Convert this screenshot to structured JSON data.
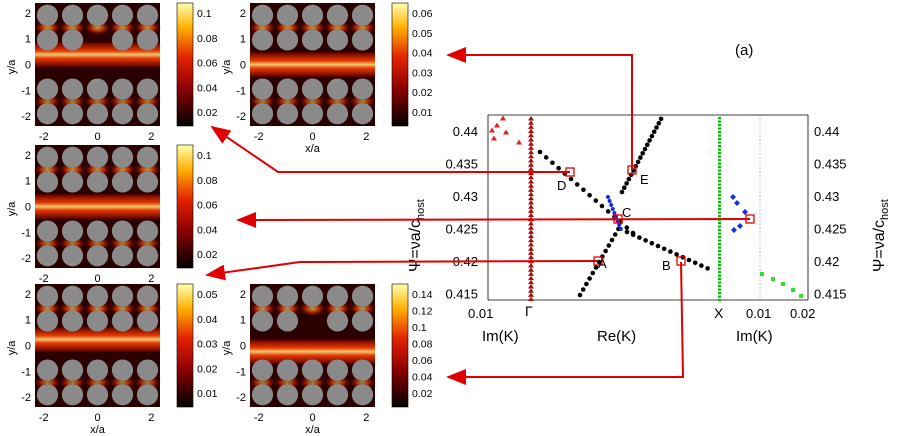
{
  "panel_label": "(a)",
  "axes": {
    "left_ylabel": "Ψ=νa/c",
    "left_ylabel_sub": "host",
    "right_ylabel": "Ψ=νa/c",
    "right_ylabel_sub": "host",
    "y_ticks": [
      "0.44",
      "0.435",
      "0.43",
      "0.425",
      "0.42",
      "0.415"
    ],
    "x_labels": {
      "im_left_tick": "0.01",
      "gamma": "Γ",
      "x_point": "X",
      "im_right_tick1": "0.01",
      "im_right_tick2": "0.02",
      "im_left_label": "Im(K)",
      "re_label": "Re(K)",
      "im_right_label": "Im(K)"
    }
  },
  "points": {
    "A": "A",
    "B": "B",
    "C": "C",
    "D": "D",
    "E": "E"
  },
  "field_maps": {
    "xlabel": "x/a",
    "ylabel": "y/a",
    "x_ticks": [
      "-2",
      "0",
      "2"
    ],
    "y_ticks": [
      "2",
      "1",
      "0",
      "-1",
      "-2"
    ],
    "colorbars": [
      [
        "0.1",
        "0.08",
        "0.06",
        "0.04",
        "0.02"
      ],
      [
        "0.06",
        "0.05",
        "0.04",
        "0.03",
        "0.02",
        "0.01"
      ],
      [
        "0.1",
        "0.08",
        "0.06",
        "0.04",
        "0.02"
      ],
      [
        "0.05",
        "0.04",
        "0.03",
        "0.02",
        "0.01"
      ],
      [
        "0.14",
        "0.12",
        "0.1",
        "0.08",
        "0.06",
        "0.04",
        "0.02"
      ]
    ]
  },
  "colors": {
    "arrow": "#e00000",
    "re_points": "#000000",
    "gamma": "#a01010",
    "x_band": "#00bb00",
    "blue": "#1030e0"
  }
}
